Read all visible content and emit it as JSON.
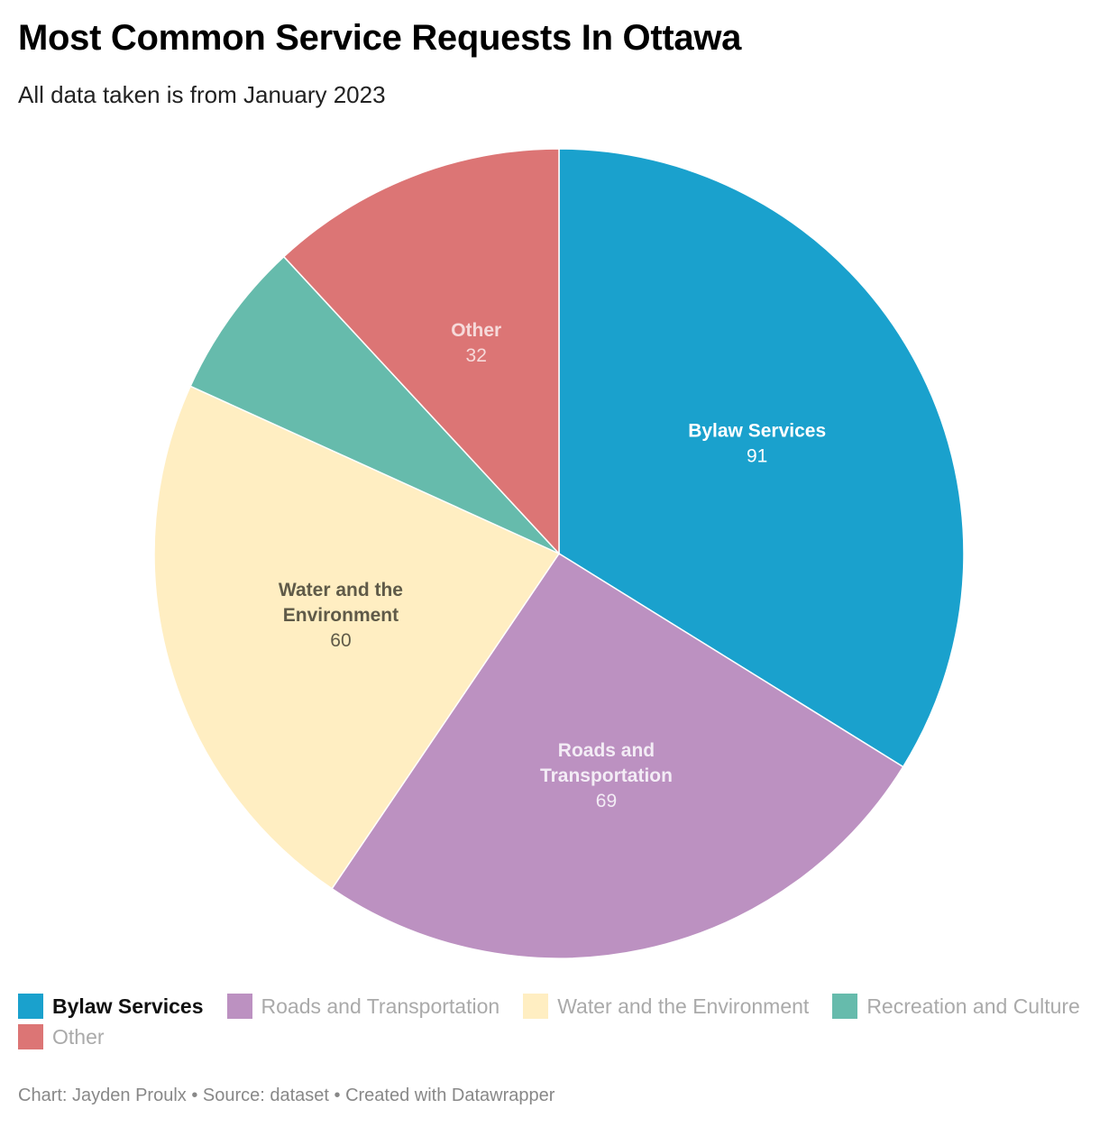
{
  "title": "Most Common Service Requests In Ottawa",
  "subtitle": "All data taken is from January 2023",
  "chart_data": {
    "type": "pie",
    "slices": [
      {
        "name": "Bylaw Services",
        "value": 91,
        "color": "#1aa1cd",
        "label_lines": [
          "Bylaw Services"
        ],
        "label_color": "#ffffff",
        "value_label": "91"
      },
      {
        "name": "Roads and Transportation",
        "value": 69,
        "color": "#bc91c1",
        "label_lines": [
          "Roads and",
          "Transportation"
        ],
        "label_color": "#f3ecf5",
        "value_label": "69"
      },
      {
        "name": "Water and the Environment",
        "value": 60,
        "color": "#ffeec2",
        "label_lines": [
          "Water and the",
          "Environment"
        ],
        "label_color": "#5f5a48",
        "value_label": "60"
      },
      {
        "name": "Recreation and Culture",
        "value": 17,
        "color": "#66bbac",
        "label_lines": [],
        "label_color": "#ffffff",
        "value_label": ""
      },
      {
        "name": "Other",
        "value": 32,
        "color": "#dc7575",
        "label_lines": [
          "Other"
        ],
        "label_color": "#f6dada",
        "value_label": "32"
      }
    ]
  },
  "legend": [
    {
      "label": "Bylaw Services",
      "color": "#1aa1cd",
      "active": true
    },
    {
      "label": "Roads and Transportation",
      "color": "#bc91c1",
      "active": false
    },
    {
      "label": "Water and the Environment",
      "color": "#ffeec2",
      "active": false
    },
    {
      "label": "Recreation and Culture",
      "color": "#66bbac",
      "active": false
    },
    {
      "label": "Other",
      "color": "#dc7575",
      "active": false
    }
  ],
  "footer": "Chart: Jayden Proulx • Source: dataset • Created with Datawrapper"
}
